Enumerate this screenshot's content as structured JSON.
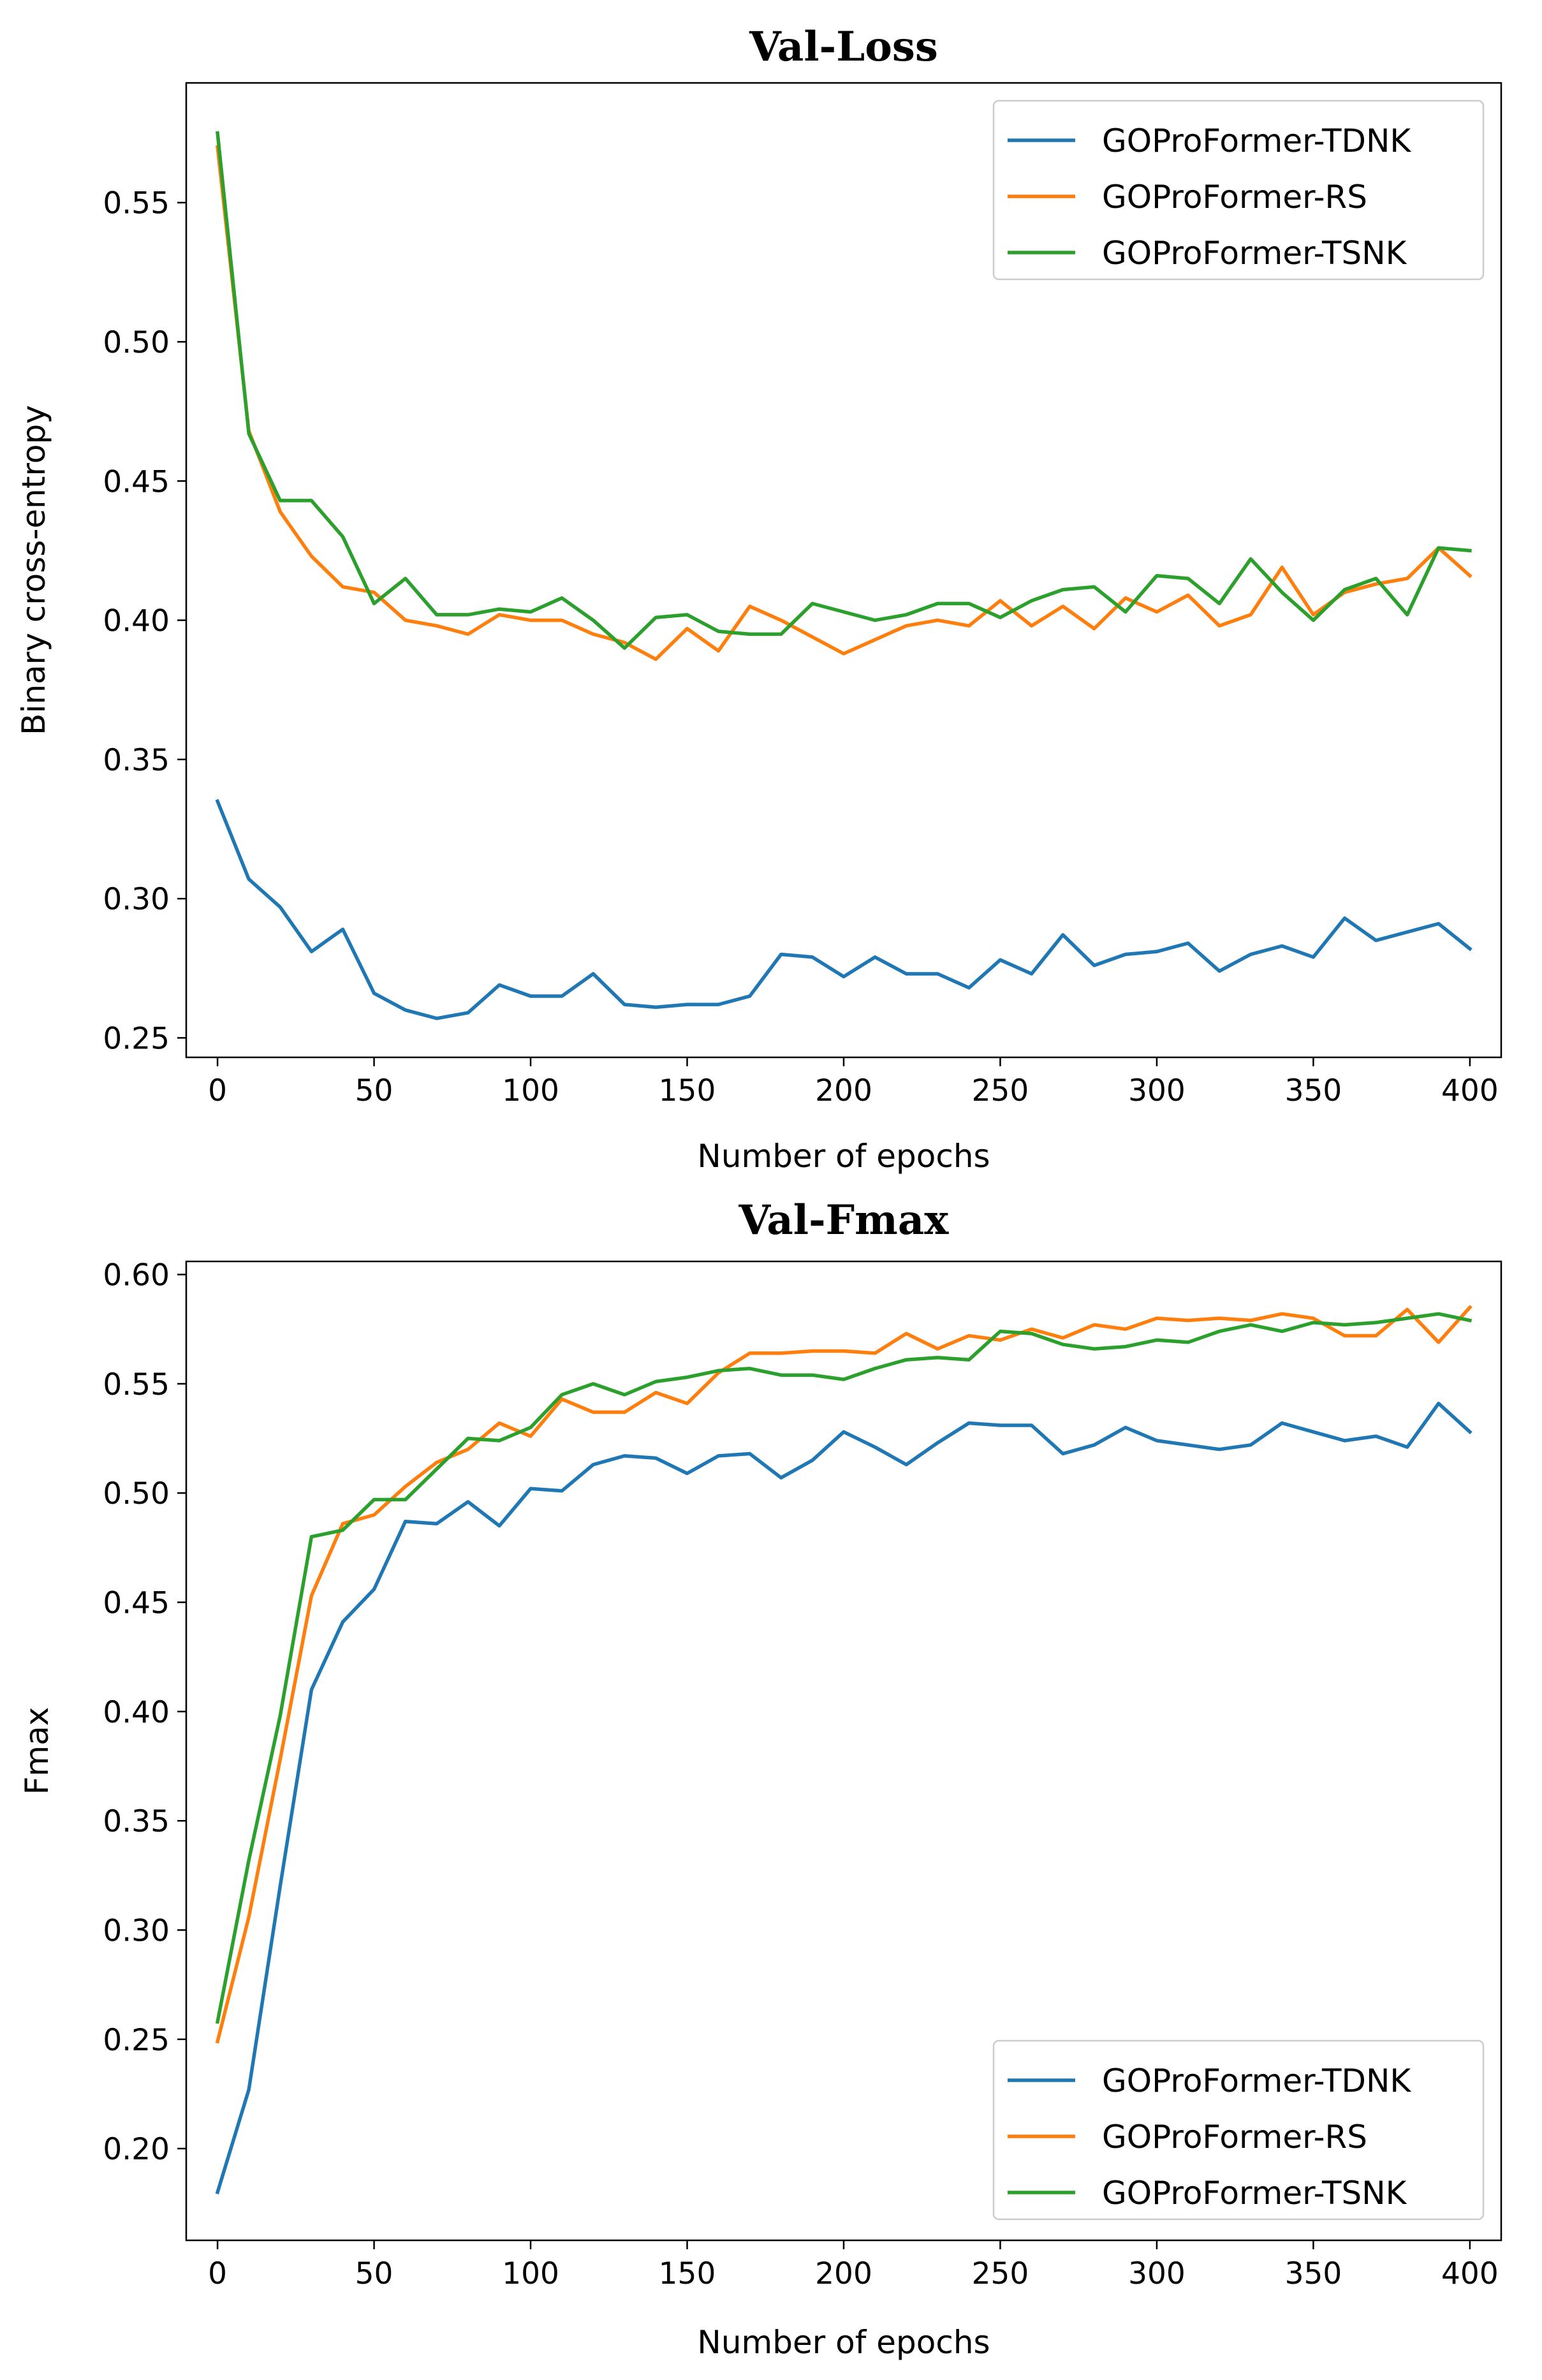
{
  "chart_data": [
    {
      "type": "line",
      "title": "Val-Loss",
      "xlabel": "Number of epochs",
      "ylabel": "Binary cross-entropy",
      "xlim": [
        -10,
        410
      ],
      "ylim": [
        0.243,
        0.593
      ],
      "xticks": [
        0,
        50,
        100,
        150,
        200,
        250,
        300,
        350,
        400
      ],
      "yticks": [
        0.25,
        0.3,
        0.35,
        0.4,
        0.45,
        0.5,
        0.55
      ],
      "xtick_labels": [
        "0",
        "50",
        "100",
        "150",
        "200",
        "250",
        "300",
        "350",
        "400"
      ],
      "ytick_labels": [
        "0.25",
        "0.30",
        "0.35",
        "0.40",
        "0.45",
        "0.50",
        "0.55"
      ],
      "legend_position": "top-right",
      "x": [
        0,
        10,
        20,
        30,
        40,
        50,
        60,
        70,
        80,
        90,
        100,
        110,
        120,
        130,
        140,
        150,
        160,
        170,
        180,
        190,
        200,
        210,
        220,
        230,
        240,
        250,
        260,
        270,
        280,
        290,
        300,
        310,
        320,
        330,
        340,
        350,
        360,
        370,
        380,
        390,
        400
      ],
      "series": [
        {
          "name": "GOProFormer-TDNK",
          "color": "#1f77b4",
          "values": [
            0.335,
            0.307,
            0.297,
            0.281,
            0.289,
            0.266,
            0.26,
            0.257,
            0.259,
            0.269,
            0.265,
            0.265,
            0.273,
            0.262,
            0.261,
            0.262,
            0.262,
            0.265,
            0.28,
            0.279,
            0.272,
            0.279,
            0.273,
            0.273,
            0.268,
            0.278,
            0.273,
            0.287,
            0.276,
            0.28,
            0.281,
            0.284,
            0.274,
            0.28,
            0.283,
            0.279,
            0.293,
            0.285,
            0.288,
            0.291,
            0.282
          ]
        },
        {
          "name": "GOProFormer-RS",
          "color": "#ff7f0e",
          "values": [
            0.57,
            0.468,
            0.439,
            0.423,
            0.412,
            0.41,
            0.4,
            0.398,
            0.395,
            0.402,
            0.4,
            0.4,
            0.395,
            0.392,
            0.386,
            0.397,
            0.389,
            0.405,
            0.4,
            0.394,
            0.388,
            0.393,
            0.398,
            0.4,
            0.398,
            0.407,
            0.398,
            0.405,
            0.397,
            0.408,
            0.403,
            0.409,
            0.398,
            0.402,
            0.419,
            0.402,
            0.41,
            0.413,
            0.415,
            0.426,
            0.416
          ]
        },
        {
          "name": "GOProFormer-TSNK",
          "color": "#2ca02c",
          "values": [
            0.575,
            0.467,
            0.443,
            0.443,
            0.43,
            0.406,
            0.415,
            0.402,
            0.402,
            0.404,
            0.403,
            0.408,
            0.4,
            0.39,
            0.401,
            0.402,
            0.396,
            0.395,
            0.395,
            0.406,
            0.403,
            0.4,
            0.402,
            0.406,
            0.406,
            0.401,
            0.407,
            0.411,
            0.412,
            0.403,
            0.416,
            0.415,
            0.406,
            0.422,
            0.41,
            0.4,
            0.411,
            0.415,
            0.402,
            0.426,
            0.425
          ]
        }
      ]
    },
    {
      "type": "line",
      "title": "Val-Fmax",
      "xlabel": "Number of epochs",
      "ylabel": "Fmax",
      "xlim": [
        -10,
        410
      ],
      "ylim": [
        0.158,
        0.606
      ],
      "xticks": [
        0,
        50,
        100,
        150,
        200,
        250,
        300,
        350,
        400
      ],
      "yticks": [
        0.2,
        0.25,
        0.3,
        0.35,
        0.4,
        0.45,
        0.5,
        0.55,
        0.6
      ],
      "xtick_labels": [
        "0",
        "50",
        "100",
        "150",
        "200",
        "250",
        "300",
        "350",
        "400"
      ],
      "ytick_labels": [
        "0.20",
        "0.25",
        "0.30",
        "0.35",
        "0.40",
        "0.45",
        "0.50",
        "0.55",
        "0.60"
      ],
      "legend_position": "bottom-right",
      "x": [
        0,
        10,
        20,
        30,
        40,
        50,
        60,
        70,
        80,
        90,
        100,
        110,
        120,
        130,
        140,
        150,
        160,
        170,
        180,
        190,
        200,
        210,
        220,
        230,
        240,
        250,
        260,
        270,
        280,
        290,
        300,
        310,
        320,
        330,
        340,
        350,
        360,
        370,
        380,
        390,
        400
      ],
      "series": [
        {
          "name": "GOProFormer-TDNK",
          "color": "#1f77b4",
          "values": [
            0.18,
            0.227,
            0.32,
            0.41,
            0.441,
            0.456,
            0.487,
            0.486,
            0.496,
            0.485,
            0.502,
            0.501,
            0.513,
            0.517,
            0.516,
            0.509,
            0.517,
            0.518,
            0.507,
            0.515,
            0.528,
            0.521,
            0.513,
            0.523,
            0.532,
            0.531,
            0.531,
            0.518,
            0.522,
            0.53,
            0.524,
            0.522,
            0.52,
            0.522,
            0.532,
            0.528,
            0.524,
            0.526,
            0.521,
            0.541,
            0.528
          ]
        },
        {
          "name": "GOProFormer-RS",
          "color": "#ff7f0e",
          "values": [
            0.249,
            0.306,
            0.378,
            0.453,
            0.486,
            0.49,
            0.503,
            0.514,
            0.52,
            0.532,
            0.526,
            0.543,
            0.537,
            0.537,
            0.546,
            0.541,
            0.555,
            0.564,
            0.564,
            0.565,
            0.565,
            0.564,
            0.573,
            0.566,
            0.572,
            0.57,
            0.575,
            0.571,
            0.577,
            0.575,
            0.58,
            0.579,
            0.58,
            0.579,
            0.582,
            0.58,
            0.572,
            0.572,
            0.584,
            0.569,
            0.585
          ]
        },
        {
          "name": "GOProFormer-TSNK",
          "color": "#2ca02c",
          "values": [
            0.258,
            0.332,
            0.398,
            0.48,
            0.483,
            0.497,
            0.497,
            0.511,
            0.525,
            0.524,
            0.53,
            0.545,
            0.55,
            0.545,
            0.551,
            0.553,
            0.556,
            0.557,
            0.554,
            0.554,
            0.552,
            0.557,
            0.561,
            0.562,
            0.561,
            0.574,
            0.573,
            0.568,
            0.566,
            0.567,
            0.57,
            0.569,
            0.574,
            0.577,
            0.574,
            0.578,
            0.577,
            0.578,
            0.58,
            0.582,
            0.579
          ]
        }
      ]
    }
  ]
}
